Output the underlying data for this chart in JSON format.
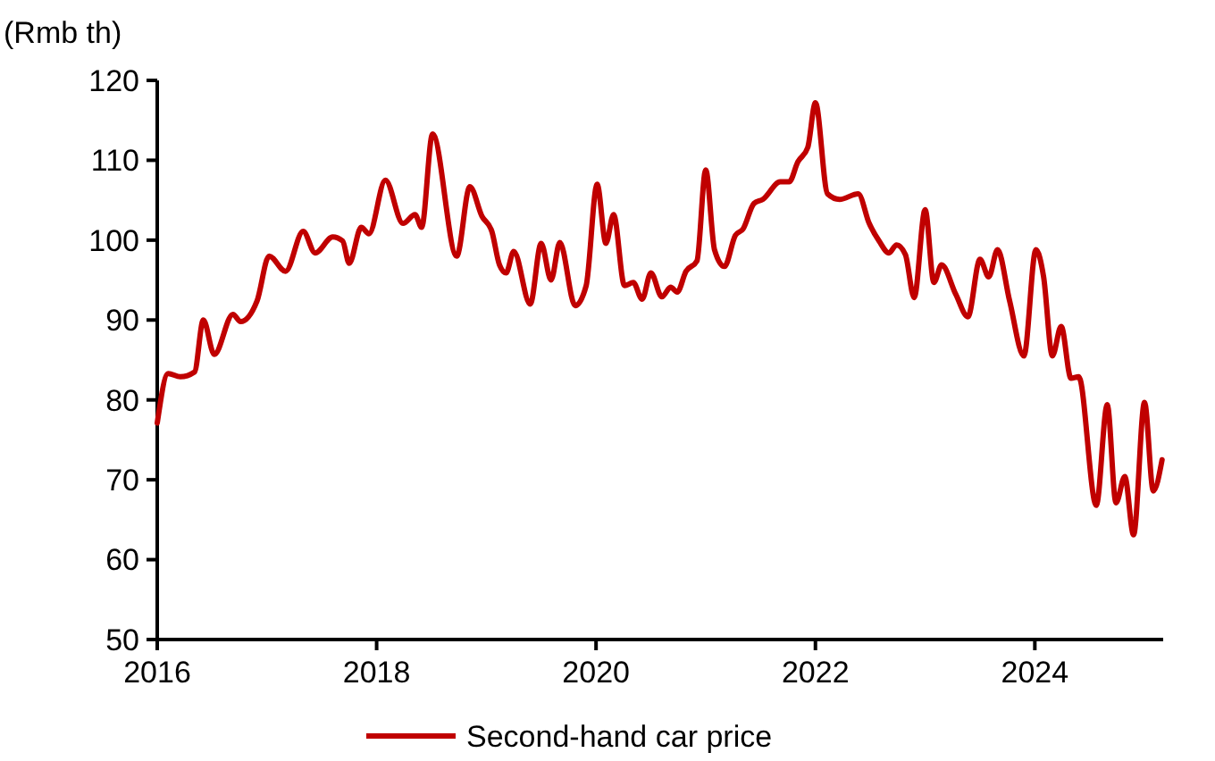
{
  "chart_data": {
    "type": "line",
    "ylabel": "(Rmb th)",
    "xlim": [
      2016,
      2025.17
    ],
    "xticks": [
      2016,
      2018,
      2020,
      2022,
      2024
    ],
    "ylim": [
      50,
      120
    ],
    "yticks": [
      50,
      60,
      70,
      80,
      90,
      100,
      110,
      120
    ],
    "grid": false,
    "legend": "bottom",
    "line_style": "solid",
    "marker": "none",
    "series": [
      {
        "name": "Second-hand car price",
        "color": "#c00000",
        "x": [
          2016.0,
          2016.1,
          2016.21,
          2016.34,
          2016.42,
          2016.52,
          2016.69,
          2016.76,
          2016.91,
          2017.02,
          2017.17,
          2017.33,
          2017.44,
          2017.6,
          2017.69,
          2017.75,
          2017.86,
          2017.93,
          2018.08,
          2018.24,
          2018.35,
          2018.41,
          2018.51,
          2018.73,
          2018.85,
          2018.96,
          2019.05,
          2019.12,
          2019.18,
          2019.25,
          2019.4,
          2019.5,
          2019.59,
          2019.67,
          2019.81,
          2019.91,
          2020.01,
          2020.09,
          2020.16,
          2020.26,
          2020.34,
          2020.42,
          2020.5,
          2020.6,
          2020.68,
          2020.74,
          2020.82,
          2020.92,
          2021.0,
          2021.08,
          2021.17,
          2021.27,
          2021.34,
          2021.44,
          2021.52,
          2021.68,
          2021.76,
          2021.84,
          2021.93,
          2022.0,
          2022.11,
          2022.22,
          2022.39,
          2022.49,
          2022.58,
          2022.67,
          2022.74,
          2022.82,
          2022.9,
          2023.0,
          2023.08,
          2023.15,
          2023.28,
          2023.39,
          2023.5,
          2023.58,
          2023.66,
          2023.77,
          2023.9,
          2024.01,
          2024.08,
          2024.16,
          2024.24,
          2024.33,
          2024.4,
          2024.56,
          2024.66,
          2024.74,
          2024.82,
          2024.9,
          2025.0,
          2025.08,
          2025.16
        ],
        "values": [
          77.1,
          83.3,
          82.9,
          83.5,
          90.0,
          85.7,
          90.7,
          89.8,
          92.4,
          98.0,
          96.1,
          101.1,
          98.4,
          100.4,
          99.9,
          97.1,
          101.6,
          100.8,
          107.5,
          102.1,
          103.2,
          101.6,
          113.3,
          98.0,
          106.7,
          103.0,
          101.1,
          96.9,
          95.9,
          98.6,
          92.0,
          99.6,
          95.0,
          99.7,
          91.8,
          94.3,
          107.0,
          99.6,
          103.2,
          94.3,
          94.7,
          92.6,
          95.9,
          92.9,
          94.1,
          93.5,
          96.1,
          97.4,
          108.8,
          98.8,
          96.7,
          100.6,
          101.4,
          104.6,
          105.1,
          107.3,
          107.3,
          109.8,
          111.6,
          117.2,
          105.8,
          105.1,
          105.8,
          102.1,
          99.9,
          98.4,
          99.4,
          98.2,
          92.8,
          103.8,
          94.7,
          96.9,
          93.2,
          90.4,
          97.6,
          95.4,
          98.8,
          92.4,
          85.5,
          98.8,
          95.4,
          85.5,
          89.2,
          82.7,
          82.9,
          66.8,
          79.4,
          67.1,
          70.4,
          63.1,
          79.7,
          68.6,
          72.5
        ]
      }
    ]
  }
}
